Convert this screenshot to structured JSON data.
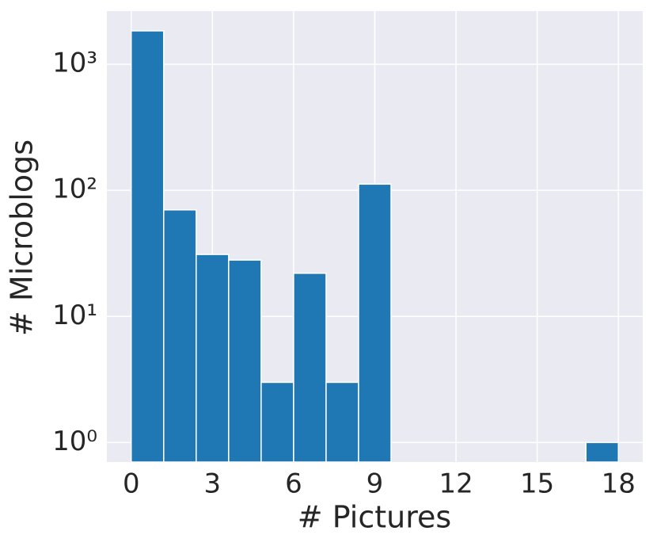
{
  "chart_data": {
    "type": "histogram",
    "xlabel": "# Pictures",
    "ylabel": "# Microblogs",
    "bins": [
      0,
      1.2,
      2.4,
      3.6,
      4.8,
      6,
      7.2,
      8.4,
      9.6,
      10.8,
      12,
      13.2,
      14.4,
      15.6,
      16.8,
      18
    ],
    "values": [
      1840,
      70,
      31,
      28,
      3,
      22,
      3,
      112,
      0,
      0,
      0,
      0,
      0,
      0,
      1
    ],
    "color": "#1f77b4",
    "xlim": [
      -0.9,
      18.9
    ],
    "xticks": [
      0,
      3,
      6,
      9,
      12,
      15,
      18
    ],
    "ylim": [
      0.7,
      2640
    ],
    "ylog": true,
    "yticks": [
      {
        "value": 1,
        "label": "10⁰"
      },
      {
        "value": 10,
        "label": "10¹"
      },
      {
        "value": 100,
        "label": "10²"
      },
      {
        "value": 1000,
        "label": "10³"
      }
    ],
    "grid": true
  }
}
